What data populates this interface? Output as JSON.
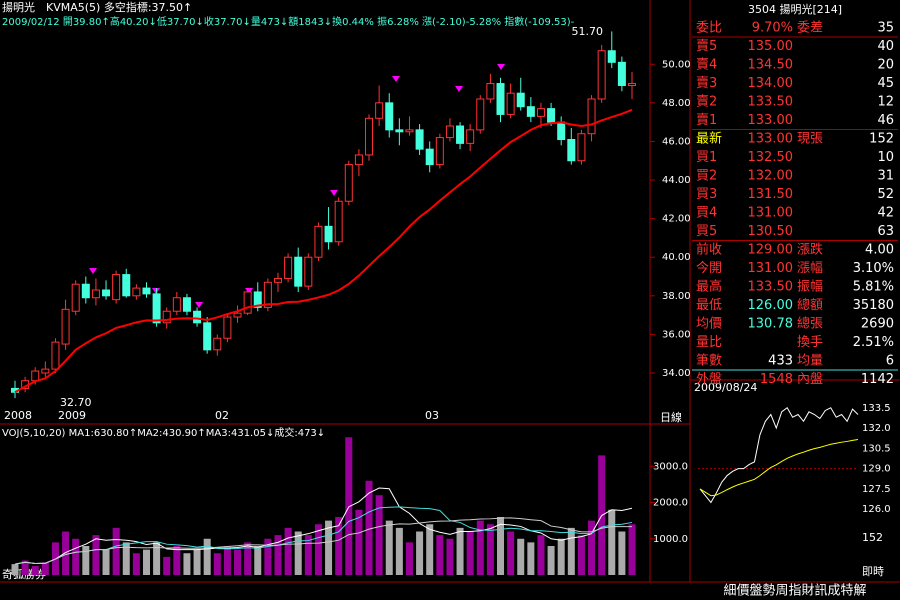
{
  "header": {
    "name": "揚明光",
    "indicator": "KVMA5(5) 多空指標:37.50↑",
    "info": "2009/02/12 開39.80↑高40.20↓低37.70↓收37.70↓量473↓額1843↓換0.44% 振6.28% 漲(-2.10)-5.28% 指數(-109.53)-"
  },
  "price_chart": {
    "high_label": "51.70",
    "low_label": "32.70",
    "ylim": [
      32.03,
      53.33
    ],
    "yticks": [
      {
        "value": 50,
        "label": "50.00"
      },
      {
        "value": 48,
        "label": "48.00"
      },
      {
        "value": 46,
        "label": "46.00"
      },
      {
        "value": 44,
        "label": "44.00"
      },
      {
        "value": 42,
        "label": "42.00"
      },
      {
        "value": 40,
        "label": "40.00"
      },
      {
        "value": 38,
        "label": "38.00"
      },
      {
        "value": 36,
        "label": "36.00"
      },
      {
        "value": 34,
        "label": "34.00"
      }
    ],
    "x_labels": [
      "2008",
      "2009",
      "02",
      "03"
    ],
    "period": "日線",
    "candles": [
      [
        33.2,
        33.6,
        32.7,
        33.0
      ],
      [
        33.2,
        33.8,
        33.0,
        33.6
      ],
      [
        33.6,
        34.3,
        33.4,
        34.1
      ],
      [
        34.0,
        34.6,
        33.8,
        34.2
      ],
      [
        34.2,
        35.8,
        34.0,
        35.6
      ],
      [
        35.5,
        37.8,
        35.2,
        37.3
      ],
      [
        37.2,
        38.8,
        37.0,
        38.6
      ],
      [
        38.6,
        39.0,
        37.6,
        37.9
      ],
      [
        37.9,
        38.9,
        37.5,
        38.3
      ],
      [
        38.3,
        38.8,
        37.8,
        38.0
      ],
      [
        37.8,
        39.3,
        37.6,
        39.1
      ],
      [
        39.1,
        39.4,
        37.9,
        38.0
      ],
      [
        38.0,
        38.6,
        37.8,
        38.4
      ],
      [
        38.4,
        38.7,
        37.9,
        38.1
      ],
      [
        38.1,
        38.4,
        36.4,
        36.6
      ],
      [
        36.6,
        37.4,
        36.3,
        37.2
      ],
      [
        37.2,
        38.2,
        37.0,
        37.9
      ],
      [
        37.9,
        38.1,
        37.0,
        37.2
      ],
      [
        37.2,
        37.4,
        36.4,
        36.6
      ],
      [
        36.6,
        36.9,
        35.0,
        35.2
      ],
      [
        35.2,
        36.0,
        34.9,
        35.8
      ],
      [
        35.8,
        37.1,
        35.6,
        36.9
      ],
      [
        36.9,
        37.5,
        36.6,
        37.1
      ],
      [
        37.1,
        38.4,
        37.0,
        38.2
      ],
      [
        38.2,
        38.7,
        37.2,
        37.4
      ],
      [
        37.4,
        38.9,
        37.2,
        38.7
      ],
      [
        38.7,
        39.2,
        38.2,
        38.9
      ],
      [
        38.9,
        40.2,
        38.7,
        40.0
      ],
      [
        40.0,
        40.5,
        38.2,
        38.5
      ],
      [
        38.5,
        40.2,
        38.3,
        40.0
      ],
      [
        40.0,
        41.8,
        39.8,
        41.6
      ],
      [
        41.6,
        42.6,
        40.4,
        40.8
      ],
      [
        40.8,
        43.1,
        40.6,
        42.9
      ],
      [
        42.9,
        45.0,
        42.7,
        44.8
      ],
      [
        44.8,
        45.6,
        44.2,
        45.3
      ],
      [
        45.3,
        47.4,
        45.0,
        47.2
      ],
      [
        47.2,
        48.9,
        46.8,
        48.0
      ],
      [
        48.0,
        48.5,
        46.2,
        46.6
      ],
      [
        46.6,
        47.2,
        45.8,
        46.5
      ],
      [
        46.5,
        47.3,
        46.3,
        46.6
      ],
      [
        46.6,
        46.9,
        45.3,
        45.6
      ],
      [
        45.6,
        46.0,
        44.4,
        44.8
      ],
      [
        44.8,
        46.4,
        44.6,
        46.2
      ],
      [
        46.2,
        47.2,
        46.0,
        46.8
      ],
      [
        46.8,
        47.0,
        45.6,
        45.9
      ],
      [
        45.9,
        46.9,
        45.5,
        46.6
      ],
      [
        46.6,
        48.4,
        46.4,
        48.2
      ],
      [
        48.2,
        49.5,
        48.0,
        49.0
      ],
      [
        49.0,
        49.3,
        47.0,
        47.4
      ],
      [
        47.4,
        49.0,
        47.2,
        48.5
      ],
      [
        48.5,
        49.3,
        47.6,
        47.8
      ],
      [
        47.8,
        48.3,
        47.0,
        47.3
      ],
      [
        47.3,
        48.0,
        46.7,
        47.7
      ],
      [
        47.7,
        48.0,
        46.8,
        47.0
      ],
      [
        47.0,
        47.3,
        45.8,
        46.1
      ],
      [
        46.1,
        46.7,
        44.8,
        45.0
      ],
      [
        45.0,
        46.6,
        44.8,
        46.4
      ],
      [
        46.4,
        48.4,
        46.0,
        48.2
      ],
      [
        48.2,
        51.0,
        48.0,
        50.7
      ],
      [
        50.7,
        51.7,
        49.8,
        50.1
      ],
      [
        50.1,
        50.4,
        48.6,
        48.9
      ],
      [
        48.9,
        49.6,
        48.2,
        49.0
      ]
    ]
  },
  "volume_chart": {
    "header": "VOJ(5,10,20) MA1:630.80↑MA2:430.90↑MA3:431.05↓成交:473↓",
    "ylim": [
      0,
      4000
    ],
    "yticks": [
      {
        "value": 3000,
        "label": "3000.0"
      },
      {
        "value": 2000,
        "label": "2000.0"
      },
      {
        "value": 1000,
        "label": "1000.0"
      }
    ],
    "values": [
      300,
      400,
      250,
      350,
      900,
      1200,
      1000,
      800,
      1100,
      700,
      1300,
      900,
      600,
      700,
      900,
      500,
      800,
      600,
      700,
      1000,
      600,
      800,
      700,
      900,
      800,
      1000,
      1100,
      1300,
      1200,
      1100,
      1400,
      1500,
      1600,
      3800,
      1800,
      2600,
      2200,
      1500,
      1300,
      900,
      1200,
      1400,
      1100,
      1000,
      1300,
      1200,
      1500,
      1400,
      1600,
      1200,
      1000,
      900,
      1100,
      800,
      1000,
      1300,
      1100,
      1500,
      3300,
      1800,
      1200,
      1400
    ]
  },
  "quote": {
    "title": "3504 揚明光[214]",
    "rows": [
      [
        "委比",
        "9.70%",
        "委差",
        "35"
      ],
      [
        "賣5",
        "135.00",
        "",
        "40"
      ],
      [
        "賣4",
        "134.50",
        "",
        "20"
      ],
      [
        "賣3",
        "134.00",
        "",
        "45"
      ],
      [
        "賣2",
        "133.50",
        "",
        "12"
      ],
      [
        "賣1",
        "133.00",
        "",
        "46"
      ],
      [
        "最新",
        "133.00",
        "現張",
        "152"
      ],
      [
        "買1",
        "132.50",
        "",
        "10"
      ],
      [
        "買2",
        "132.00",
        "",
        "31"
      ],
      [
        "買3",
        "131.50",
        "",
        "52"
      ],
      [
        "買4",
        "131.00",
        "",
        "42"
      ],
      [
        "買5",
        "130.50",
        "",
        "63"
      ],
      [
        "前收",
        "129.00",
        "漲跌",
        "4.00"
      ],
      [
        "今開",
        "131.00",
        "漲幅",
        "3.10%"
      ],
      [
        "最高",
        "133.50",
        "振幅",
        "5.81%"
      ],
      [
        "最低",
        "126.00",
        "總額",
        "35180"
      ],
      [
        "均價",
        "130.78",
        "總張",
        "2690"
      ],
      [
        "量比",
        "",
        "換手",
        "2.51%"
      ],
      [
        "筆數",
        "433",
        "均量",
        "6"
      ],
      [
        "外盤",
        "1548",
        "內盤",
        "1142"
      ]
    ]
  },
  "intraday": {
    "date": "2009/08/24",
    "ylim": [
      125.5,
      134
    ],
    "yticks": [
      133.5,
      {
        "value": 132,
        "label": "132.0"
      },
      130.5,
      {
        "value": 129,
        "label": "129.0"
      },
      127.5,
      {
        "value": 126,
        "label": "126.0"
      }
    ],
    "volume_label": "152",
    "now_label": "即時",
    "values": [
      127.5,
      127.0,
      126.5,
      127.2,
      128.0,
      128.5,
      128.8,
      129.0,
      129.0,
      129.3,
      129.5,
      131.5,
      132.5,
      133.0,
      132.0,
      133.2,
      133.5,
      132.8,
      133.0,
      132.5,
      133.2,
      133.0,
      132.7,
      133.3,
      133.5,
      132.8,
      133.0,
      132.5,
      133.4,
      133.0
    ]
  },
  "footer": {
    "brand": "奇狐勝券",
    "menu": "細價盤勢周指財訊成特解"
  }
}
